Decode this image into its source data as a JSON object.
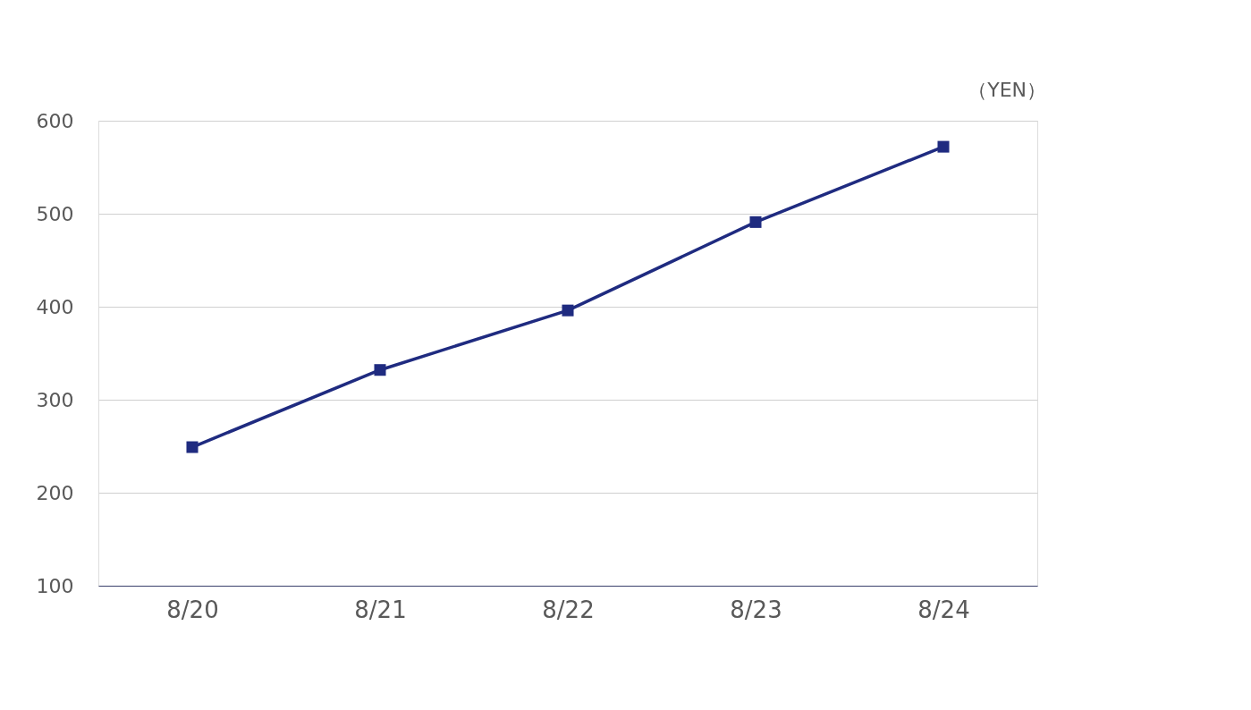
{
  "chart_data": {
    "type": "line",
    "ylabel": "（YEN）",
    "categories": [
      "8/20",
      "8/21",
      "8/22",
      "8/23",
      "8/24"
    ],
    "series": [
      {
        "color": "#1f2b80",
        "values": [
          249,
          332,
          396,
          491,
          572
        ]
      }
    ],
    "ylim": [
      100,
      600
    ],
    "yticks": [
      100,
      200,
      300,
      400,
      500,
      600
    ],
    "grid": "y",
    "marker": "square",
    "line_style": "solid"
  }
}
